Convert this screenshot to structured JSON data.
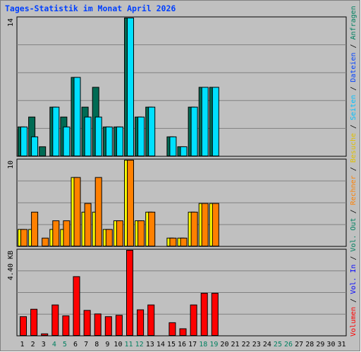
{
  "title": "Tages-Statistik im Monat April 2026",
  "colors": {
    "background": "#c0c0c0",
    "frame": "#e8e8e8",
    "grid": "#808080",
    "anfragen": "#006b54",
    "dateien": "#00e0ff",
    "seiten": "#00c0ff",
    "besuche": "#ffff00",
    "rechner": "#ff8000",
    "volumen": "#ff0000",
    "title": "#0040ff",
    "weekday": "#000000",
    "weekend": "#008060"
  },
  "legend_right": [
    {
      "text": "Volumen",
      "color": "#ff0000"
    },
    {
      "text": " / ",
      "color": "#000000"
    },
    {
      "text": "Vol. In",
      "color": "#0000ff"
    },
    {
      "text": " / ",
      "color": "#000000"
    },
    {
      "text": "Vol. Out",
      "color": "#008060"
    },
    {
      "text": " / ",
      "color": "#000000"
    },
    {
      "text": "Rechner",
      "color": "#ff8000"
    },
    {
      "text": " / ",
      "color": "#000000"
    },
    {
      "text": "Besuche",
      "color": "#e0c000"
    },
    {
      "text": " / ",
      "color": "#000000"
    },
    {
      "text": "Seiten",
      "color": "#00c0ff"
    },
    {
      "text": " / ",
      "color": "#000000"
    },
    {
      "text": "Dateien",
      "color": "#0040ff"
    },
    {
      "text": " / ",
      "color": "#000000"
    },
    {
      "text": "Anfragen",
      "color": "#008060"
    }
  ],
  "chart_data": [
    {
      "type": "bar",
      "max_label": "14",
      "ylim": [
        0,
        14
      ],
      "categories": [
        "1",
        "2",
        "3",
        "4",
        "5",
        "6",
        "7",
        "8",
        "9",
        "10",
        "11",
        "12",
        "13",
        "14",
        "15",
        "16",
        "17",
        "18",
        "19",
        "20",
        "21",
        "22",
        "23",
        "24",
        "25",
        "26",
        "27",
        "28",
        "29",
        "30",
        "31"
      ],
      "weekend_days": [
        "4",
        "5",
        "11",
        "12",
        "18",
        "19",
        "25",
        "26"
      ],
      "series": [
        {
          "name": "Anfragen",
          "values": [
            3,
            4,
            1,
            5,
            4,
            8,
            5,
            7,
            3,
            3,
            14,
            4,
            5,
            0,
            2,
            1,
            5,
            7,
            7,
            0,
            0,
            0,
            0,
            0,
            0,
            0,
            0,
            0,
            0,
            0,
            0
          ]
        },
        {
          "name": "Dateien",
          "values": [
            3,
            2,
            0,
            5,
            3,
            8,
            4,
            4,
            3,
            3,
            14,
            4,
            5,
            0,
            2,
            1,
            5,
            7,
            7,
            0,
            0,
            0,
            0,
            0,
            0,
            0,
            0,
            0,
            0,
            0,
            0
          ]
        }
      ]
    },
    {
      "type": "bar",
      "max_label": "10",
      "ylim": [
        0,
        10
      ],
      "series": [
        {
          "name": "Besuche",
          "values": [
            2,
            2,
            0,
            2,
            2,
            8,
            4,
            4,
            2,
            3,
            10,
            3,
            4,
            0,
            1,
            1,
            4,
            5,
            5,
            0,
            0,
            0,
            0,
            0,
            0,
            0,
            0,
            0,
            0,
            0,
            0
          ]
        },
        {
          "name": "Rechner",
          "values": [
            2,
            4,
            1,
            3,
            3,
            8,
            5,
            8,
            2,
            3,
            10,
            3,
            4,
            0,
            1,
            1,
            4,
            5,
            5,
            0,
            0,
            0,
            0,
            0,
            0,
            0,
            0,
            0,
            0,
            0,
            0
          ]
        }
      ]
    },
    {
      "type": "bar",
      "max_label": "4.40 KB",
      "ylim": [
        0,
        4.4
      ],
      "series": [
        {
          "name": "Volumen",
          "values": [
            1.0,
            1.38,
            0.12,
            1.6,
            1.04,
            3.05,
            1.32,
            1.14,
            1.0,
            1.07,
            4.4,
            1.35,
            1.6,
            0,
            0.69,
            0.38,
            1.6,
            2.2,
            2.2,
            0,
            0,
            0,
            0,
            0,
            0,
            0,
            0,
            0,
            0,
            0,
            0
          ]
        }
      ]
    }
  ]
}
